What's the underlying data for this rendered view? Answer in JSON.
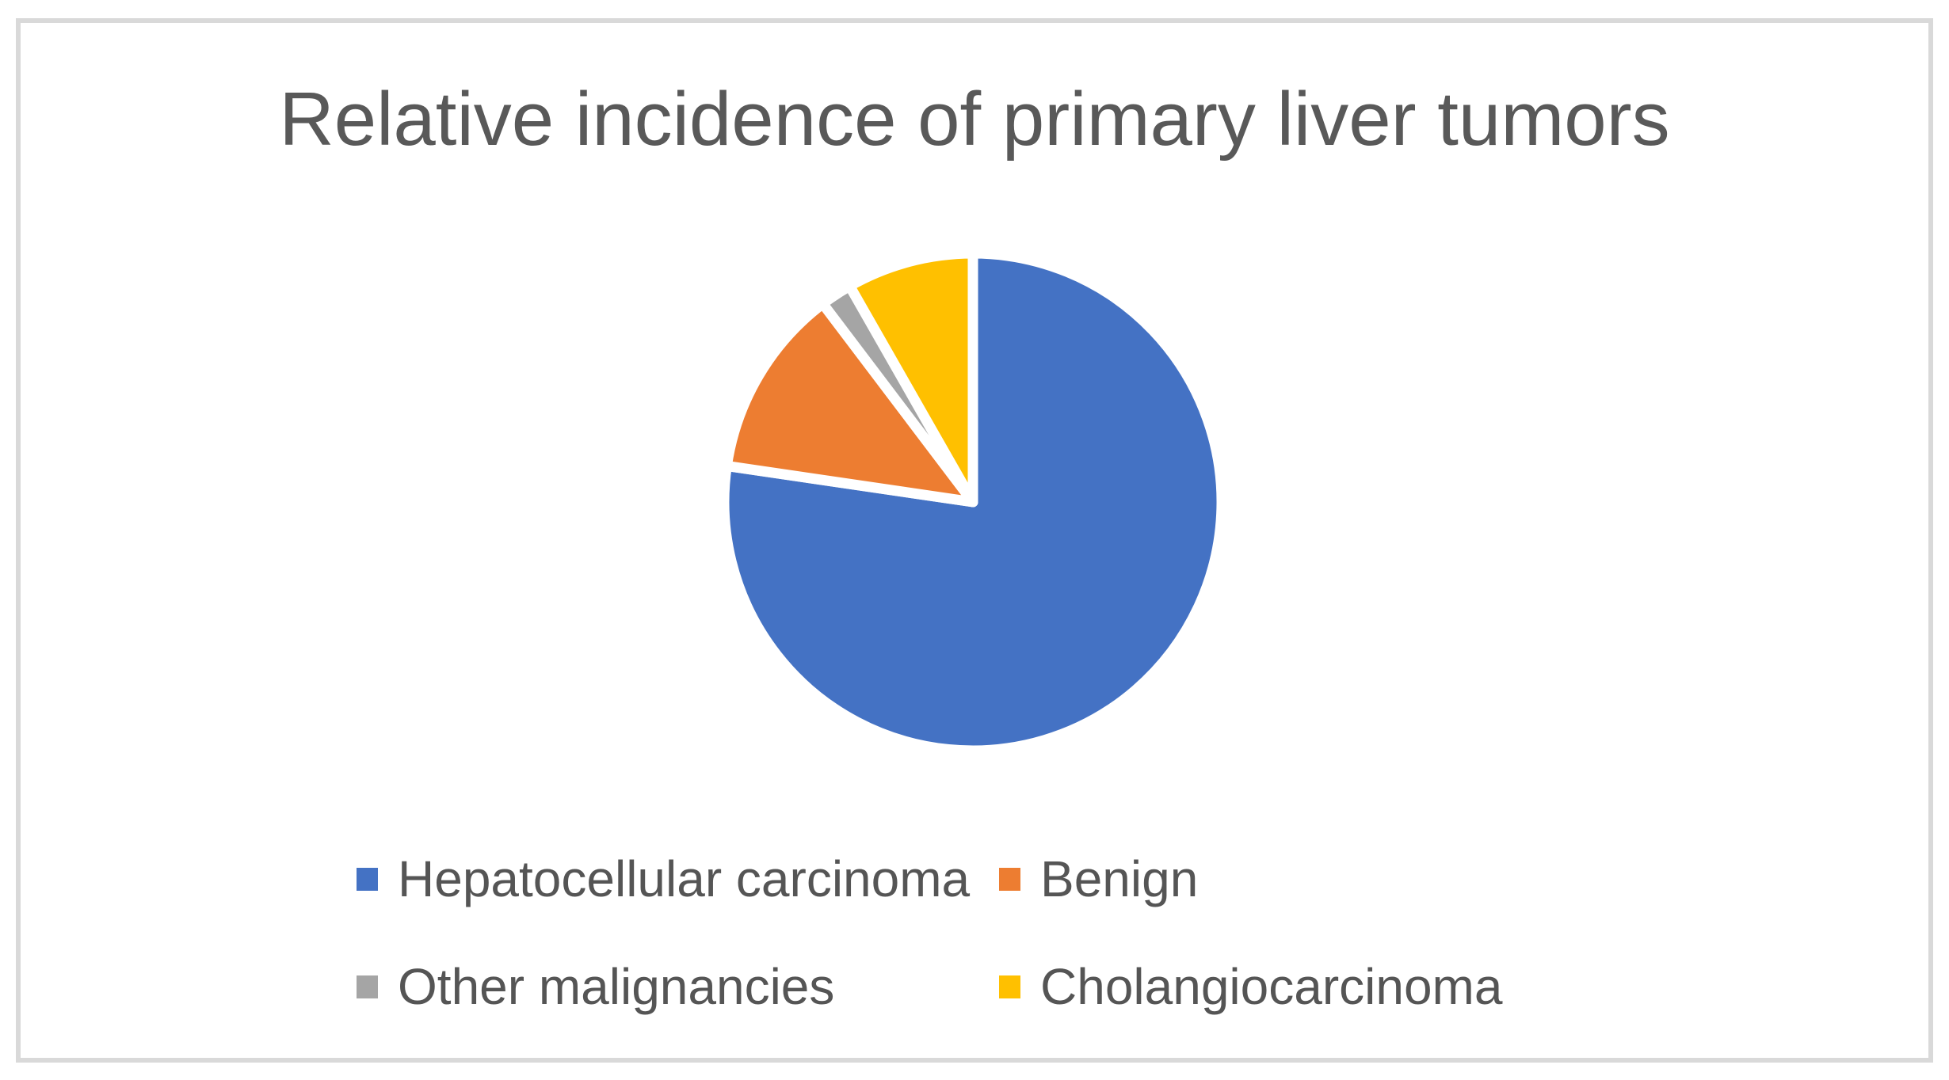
{
  "chart_data": {
    "type": "pie",
    "title": "Relative incidence of primary liver tumors",
    "slices": [
      {
        "label": "Hepatocellular carcinoma",
        "value": 75,
        "color": "#4472C4"
      },
      {
        "label": "Benign",
        "value": 12,
        "color": "#ED7D31"
      },
      {
        "label": "Other malignancies",
        "value": 2,
        "color": "#A5A5A5"
      },
      {
        "label": "Cholangiocarcinoma",
        "value": 8,
        "color": "#FFC000"
      }
    ],
    "start_angle_deg": 0,
    "direction": "clockwise",
    "slice_border_color": "#FFFFFF",
    "legend_position": "bottom",
    "legend_columns": 2,
    "legend_order": [
      "Hepatocellular carcinoma",
      "Benign",
      "Other malignancies",
      "Cholangiocarcinoma"
    ]
  },
  "style": {
    "background_color": "#FFFFFF",
    "frame_border_color": "#D9D9D9",
    "title_color": "#595959",
    "legend_text_color": "#555555"
  }
}
